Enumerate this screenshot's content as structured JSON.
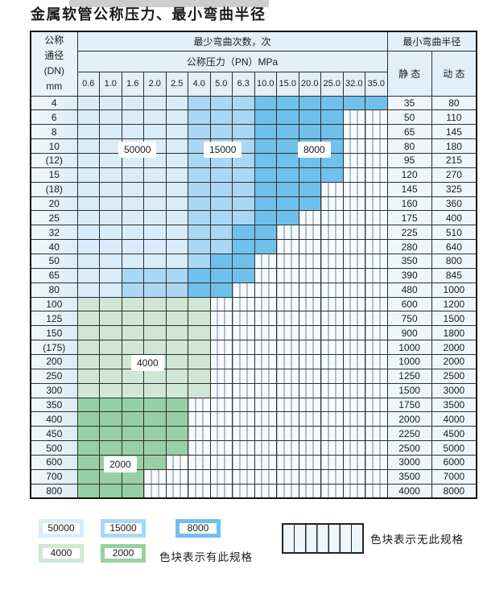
{
  "page": {
    "title": "金属软管公称压力、最小弯曲半径"
  },
  "table": {
    "dn_header_lines": [
      "公称",
      "通径",
      "(DN)",
      "mm"
    ],
    "bend_cycles_header": "最少弯曲次数，次",
    "pressure_header": "公称压力（PN）MPa",
    "min_radius_header": "最小弯曲半径",
    "static_header": "静 态",
    "dynamic_header": "动 态",
    "pressure_columns": [
      "0.6",
      "1.0",
      "1.6",
      "2.0",
      "2.5",
      "4.0",
      "5.0",
      "6.3",
      "10.0",
      "15.0",
      "20.0",
      "25.0",
      "32.0",
      "35.0"
    ],
    "rows": [
      {
        "dn": "4",
        "zones": [
          [
            "z50000",
            5
          ],
          [
            "z15000",
            3
          ],
          [
            "z8000",
            6
          ]
        ],
        "static": "35",
        "dynamic": "80"
      },
      {
        "dn": "6",
        "zones": [
          [
            "z50000",
            5
          ],
          [
            "z15000",
            3
          ],
          [
            "z8000",
            4
          ]
        ],
        "static": "50",
        "dynamic": "110"
      },
      {
        "dn": "8",
        "zones": [
          [
            "z50000",
            5
          ],
          [
            "z15000",
            3
          ],
          [
            "z8000",
            4
          ]
        ],
        "static": "65",
        "dynamic": "145"
      },
      {
        "dn": "10",
        "zones": [
          [
            "z50000",
            5
          ],
          [
            "z15000",
            3
          ],
          [
            "z8000",
            4
          ]
        ],
        "static": "80",
        "dynamic": "180"
      },
      {
        "dn": "(12)",
        "zones": [
          [
            "z50000",
            5
          ],
          [
            "z15000",
            3
          ],
          [
            "z8000",
            4
          ]
        ],
        "static": "95",
        "dynamic": "215"
      },
      {
        "dn": "15",
        "zones": [
          [
            "z50000",
            5
          ],
          [
            "z15000",
            3
          ],
          [
            "z8000",
            4
          ]
        ],
        "static": "120",
        "dynamic": "270"
      },
      {
        "dn": "(18)",
        "zones": [
          [
            "z50000",
            5
          ],
          [
            "z15000",
            3
          ],
          [
            "z8000",
            3
          ]
        ],
        "static": "145",
        "dynamic": "325"
      },
      {
        "dn": "20",
        "zones": [
          [
            "z50000",
            5
          ],
          [
            "z15000",
            3
          ],
          [
            "z8000",
            3
          ]
        ],
        "static": "160",
        "dynamic": "360"
      },
      {
        "dn": "25",
        "zones": [
          [
            "z50000",
            5
          ],
          [
            "z15000",
            3
          ],
          [
            "z8000",
            2
          ]
        ],
        "static": "175",
        "dynamic": "400"
      },
      {
        "dn": "32",
        "zones": [
          [
            "z50000",
            5
          ],
          [
            "z15000",
            2
          ],
          [
            "z8000",
            2
          ]
        ],
        "static": "225",
        "dynamic": "510"
      },
      {
        "dn": "40",
        "zones": [
          [
            "z50000",
            5
          ],
          [
            "z15000",
            2
          ],
          [
            "z8000",
            2
          ]
        ],
        "static": "280",
        "dynamic": "640"
      },
      {
        "dn": "50",
        "zones": [
          [
            "z50000",
            5
          ],
          [
            "z15000",
            1
          ],
          [
            "z8000",
            2
          ]
        ],
        "static": "350",
        "dynamic": "800"
      },
      {
        "dn": "65",
        "zones": [
          [
            "z50000",
            2
          ],
          [
            "z15000",
            3
          ],
          [
            "z8000",
            3
          ]
        ],
        "static": "390",
        "dynamic": "845"
      },
      {
        "dn": "80",
        "zones": [
          [
            "z50000",
            2
          ],
          [
            "z15000",
            3
          ],
          [
            "z8000",
            2
          ]
        ],
        "static": "480",
        "dynamic": "1000"
      },
      {
        "dn": "100",
        "zones": [
          [
            "z4000",
            6
          ]
        ],
        "static": "600",
        "dynamic": "1200"
      },
      {
        "dn": "125",
        "zones": [
          [
            "z4000",
            6
          ]
        ],
        "static": "750",
        "dynamic": "1500"
      },
      {
        "dn": "150",
        "zones": [
          [
            "z4000",
            6
          ]
        ],
        "static": "900",
        "dynamic": "1800"
      },
      {
        "dn": "(175)",
        "zones": [
          [
            "z4000",
            6
          ]
        ],
        "static": "1000",
        "dynamic": "2000"
      },
      {
        "dn": "200",
        "zones": [
          [
            "z4000",
            6
          ]
        ],
        "static": "1000",
        "dynamic": "2000"
      },
      {
        "dn": "250",
        "zones": [
          [
            "z4000",
            6
          ]
        ],
        "static": "1250",
        "dynamic": "2500"
      },
      {
        "dn": "300",
        "zones": [
          [
            "z4000",
            6
          ]
        ],
        "static": "1500",
        "dynamic": "3000"
      },
      {
        "dn": "350",
        "zones": [
          [
            "z2000",
            5
          ]
        ],
        "static": "1750",
        "dynamic": "3500"
      },
      {
        "dn": "400",
        "zones": [
          [
            "z2000",
            5
          ]
        ],
        "static": "2000",
        "dynamic": "4000"
      },
      {
        "dn": "450",
        "zones": [
          [
            "z2000",
            5
          ]
        ],
        "static": "2250",
        "dynamic": "4500"
      },
      {
        "dn": "500",
        "zones": [
          [
            "z2000",
            5
          ]
        ],
        "static": "2500",
        "dynamic": "5000"
      },
      {
        "dn": "600",
        "zones": [
          [
            "z2000",
            4
          ]
        ],
        "static": "3000",
        "dynamic": "6000"
      },
      {
        "dn": "700",
        "zones": [
          [
            "z2000",
            3
          ]
        ],
        "static": "3500",
        "dynamic": "7000"
      },
      {
        "dn": "800",
        "zones": [
          [
            "z2000",
            3
          ]
        ],
        "static": "4000",
        "dynamic": "8000"
      }
    ]
  },
  "zones": {
    "z50000": {
      "label": "50000",
      "color": "#d9ecf9"
    },
    "z15000": {
      "label": "15000",
      "color": "#aad7f3"
    },
    "z8000": {
      "label": "8000",
      "color": "#6fc1ec"
    },
    "z4000": {
      "label": "4000",
      "color": "#cfe7d4"
    },
    "z2000": {
      "label": "2000",
      "color": "#98d0a5"
    }
  },
  "legend": {
    "available_note": "色块表示有此规格",
    "unavailable_note": "色块表示无此规格"
  }
}
